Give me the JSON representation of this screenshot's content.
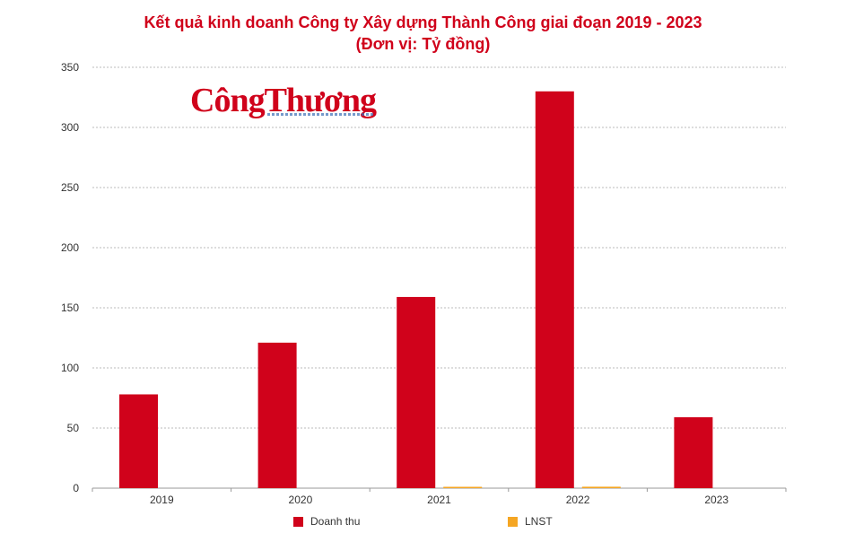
{
  "chart_data": {
    "type": "bar",
    "title": "Kết quả kinh doanh Công ty Xây dựng Thành Công giai đoạn 2019 - 2023",
    "subtitle": "(Đơn vị: Tỷ đồng)",
    "categories": [
      "2019",
      "2020",
      "2021",
      "2022",
      "2023"
    ],
    "series": [
      {
        "name": "Doanh thu",
        "color": "#d0021b",
        "values": [
          78,
          121,
          159,
          330,
          59
        ]
      },
      {
        "name": "LNST",
        "color": "#f5a623",
        "values": [
          0,
          0,
          0.6,
          1.2,
          0
        ]
      }
    ],
    "yticks": [
      "0",
      "50",
      "100",
      "150",
      "200",
      "250",
      "300",
      "350"
    ],
    "ylim": [
      0,
      350
    ],
    "grid": true,
    "legend": "bottom"
  },
  "logo": {
    "text": "CôngThương"
  }
}
